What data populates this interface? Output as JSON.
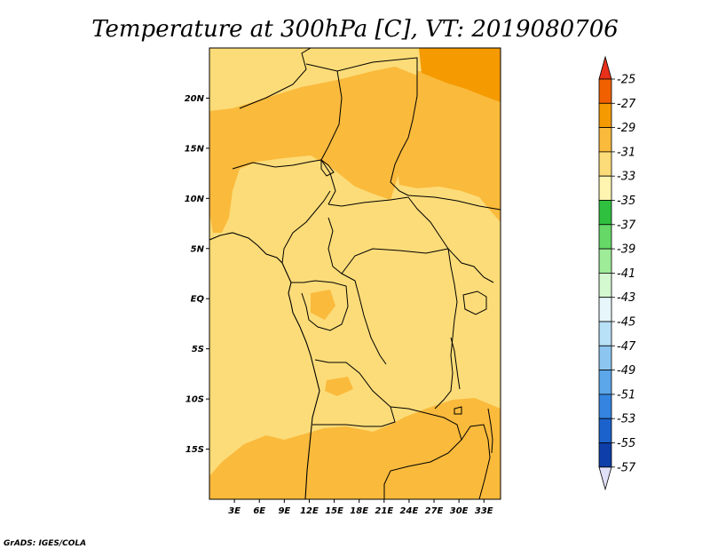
{
  "title": "Temperature at 300hPa [C], VT: 2019080706",
  "credit": "GrADS: IGES/COLA",
  "map": {
    "projection": "latlon",
    "lon_range": [
      0,
      35
    ],
    "lat_range": [
      -20,
      25
    ],
    "x_ticks": [
      {
        "lon": 3,
        "label": "3E"
      },
      {
        "lon": 6,
        "label": "6E"
      },
      {
        "lon": 9,
        "label": "9E"
      },
      {
        "lon": 12,
        "label": "12E"
      },
      {
        "lon": 15,
        "label": "15E"
      },
      {
        "lon": 18,
        "label": "18E"
      },
      {
        "lon": 21,
        "label": "21E"
      },
      {
        "lon": 24,
        "label": "24E"
      },
      {
        "lon": 27,
        "label": "27E"
      },
      {
        "lon": 30,
        "label": "30E"
      },
      {
        "lon": 33,
        "label": "33E"
      }
    ],
    "y_ticks": [
      {
        "lat": 20,
        "label": "20N"
      },
      {
        "lat": 15,
        "label": "15N"
      },
      {
        "lat": 10,
        "label": "10N"
      },
      {
        "lat": 5,
        "label": "5N"
      },
      {
        "lat": 0,
        "label": "EQ"
      },
      {
        "lat": -5,
        "label": "5S"
      },
      {
        "lat": -10,
        "label": "10S"
      },
      {
        "lat": -15,
        "label": "15S"
      }
    ]
  },
  "colorbar": {
    "levels": [
      {
        "label": "-25",
        "color": "#f06000"
      },
      {
        "label": "-27",
        "color": "#f59a00"
      },
      {
        "label": "-29",
        "color": "#faba3c"
      },
      {
        "label": "-31",
        "color": "#fcdc78"
      },
      {
        "label": "-33",
        "color": "#fff4b0"
      },
      {
        "label": "-35",
        "color": "#30c040"
      },
      {
        "label": "-37",
        "color": "#66d868"
      },
      {
        "label": "-39",
        "color": "#9eeb98"
      },
      {
        "label": "-41",
        "color": "#d4f8d0"
      },
      {
        "label": "-43",
        "color": "#e6f6fb"
      },
      {
        "label": "-45",
        "color": "#b8e0f6"
      },
      {
        "label": "-47",
        "color": "#8cc6f0"
      },
      {
        "label": "-49",
        "color": "#5ca6ea"
      },
      {
        "label": "-51",
        "color": "#3584e0"
      },
      {
        "label": "-53",
        "color": "#1c62cc"
      },
      {
        "label": "-55",
        "color": "#0e3ea8"
      },
      {
        "label": "-57",
        "color": "#0a1870"
      }
    ],
    "top_color": "#e8301a",
    "bottom_color": "#e0e0f8"
  },
  "colors": {
    "base_field": "#fcdc78",
    "warm_field": "#faba3c",
    "hot_field": "#f59a00"
  }
}
